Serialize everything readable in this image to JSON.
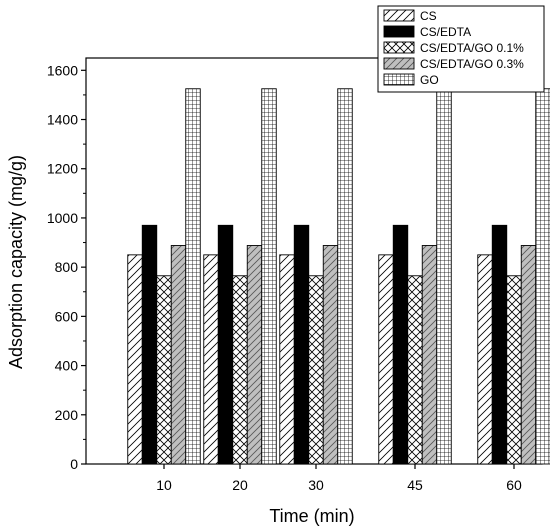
{
  "chart_data": {
    "type": "bar",
    "xlabel": "Time (min)",
    "ylabel": "Adsorption capacity (mg/g)",
    "ylim": [
      0,
      1650
    ],
    "yticks": [
      0,
      200,
      400,
      600,
      800,
      1000,
      1200,
      1400,
      1600
    ],
    "categories": [
      "10",
      "20",
      "30",
      "45",
      "60"
    ],
    "legend_position": "top-right",
    "grid": false,
    "series": [
      {
        "name": "CS",
        "pattern": "diagonal-hatch",
        "color": "#ffffff",
        "values": [
          850,
          850,
          850,
          850,
          850
        ]
      },
      {
        "name": "CS/EDTA",
        "pattern": "solid",
        "color": "#000000",
        "values": [
          970,
          970,
          970,
          970,
          970
        ]
      },
      {
        "name": "CS/EDTA/GO 0.1%",
        "pattern": "cross-hatch",
        "color": "#ffffff",
        "values": [
          765,
          765,
          765,
          765,
          765
        ]
      },
      {
        "name": "CS/EDTA/GO 0.3%",
        "pattern": "gray-diagonal",
        "color": "#bfbfbf",
        "values": [
          888,
          888,
          888,
          888,
          888
        ]
      },
      {
        "name": "GO",
        "pattern": "grid",
        "color": "#ffffff",
        "values": [
          1525,
          1525,
          1525,
          1525,
          1525
        ]
      }
    ]
  }
}
